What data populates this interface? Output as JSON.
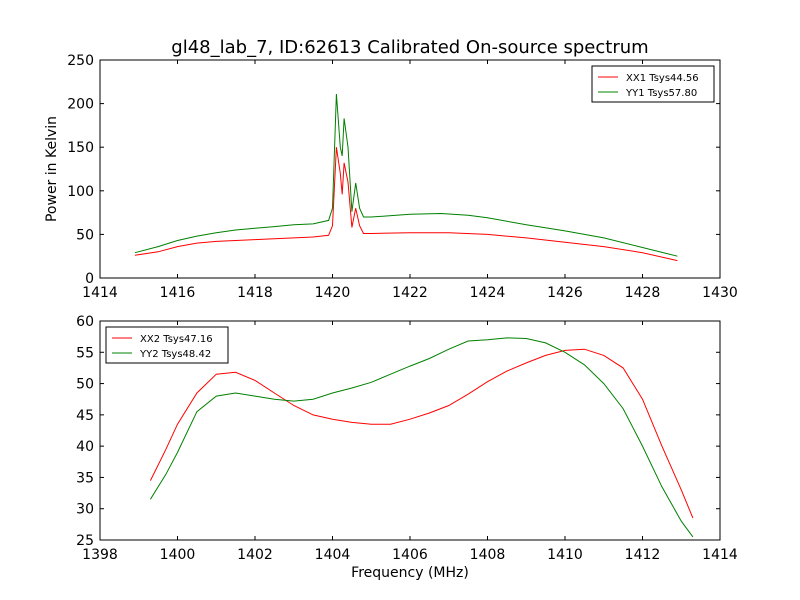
{
  "title": "gl48_lab_7, ID:62613 Calibrated On-source spectrum",
  "chart_data": [
    {
      "type": "line",
      "ylabel": "Power in Kelvin",
      "xlabel": "",
      "xlim": [
        1414,
        1430
      ],
      "ylim": [
        0,
        250
      ],
      "xticks": [
        1414,
        1416,
        1418,
        1420,
        1422,
        1424,
        1426,
        1428,
        1430
      ],
      "yticks": [
        0,
        50,
        100,
        150,
        200,
        250
      ],
      "legend": "top-right",
      "series": [
        {
          "name": "XX1 Tsys44.56",
          "color": "#ff0000",
          "x": [
            1414.9,
            1415.5,
            1416,
            1416.5,
            1417,
            1417.5,
            1418,
            1418.5,
            1419,
            1419.5,
            1419.9,
            1420.0,
            1420.1,
            1420.2,
            1420.25,
            1420.3,
            1420.4,
            1420.5,
            1420.6,
            1420.7,
            1420.8,
            1421,
            1422,
            1423,
            1424,
            1425,
            1426,
            1427,
            1428,
            1428.9
          ],
          "y": [
            26,
            30,
            36,
            40,
            42,
            43,
            44,
            45,
            46,
            47,
            49,
            60,
            150,
            120,
            96,
            132,
            110,
            58,
            80,
            60,
            51,
            51,
            52,
            52,
            50,
            46,
            41,
            36,
            29,
            20
          ]
        },
        {
          "name": "YY1 Tsys57.80",
          "color": "#008000",
          "x": [
            1414.9,
            1415.5,
            1416,
            1416.5,
            1417,
            1417.5,
            1418,
            1418.5,
            1419,
            1419.5,
            1419.9,
            1420.0,
            1420.1,
            1420.2,
            1420.25,
            1420.3,
            1420.4,
            1420.5,
            1420.6,
            1420.7,
            1420.8,
            1421,
            1422,
            1422.8,
            1423.5,
            1424,
            1425,
            1426,
            1427,
            1428,
            1428.9
          ],
          "y": [
            29,
            36,
            43,
            48,
            52,
            55,
            57,
            59,
            61,
            62,
            66,
            80,
            211,
            150,
            140,
            183,
            150,
            76,
            109,
            80,
            70,
            70,
            73,
            74,
            72,
            69,
            61,
            54,
            46,
            35,
            25
          ]
        }
      ]
    },
    {
      "type": "line",
      "xlabel": "Frequency (MHz)",
      "ylabel": "",
      "xlim": [
        1398,
        1414
      ],
      "ylim": [
        25,
        60
      ],
      "xticks": [
        1398,
        1400,
        1402,
        1404,
        1406,
        1408,
        1410,
        1412,
        1414
      ],
      "yticks": [
        25,
        30,
        35,
        40,
        45,
        50,
        55,
        60
      ],
      "legend": "top-left",
      "series": [
        {
          "name": "XX2 Tsys47.16",
          "color": "#ff0000",
          "x": [
            1399.3,
            1399.7,
            1400.0,
            1400.5,
            1401.0,
            1401.5,
            1402.0,
            1402.5,
            1403.0,
            1403.5,
            1404.0,
            1404.5,
            1405.0,
            1405.5,
            1406.0,
            1406.5,
            1407.0,
            1407.5,
            1408.0,
            1408.5,
            1409.0,
            1409.5,
            1410.0,
            1410.5,
            1411.0,
            1411.5,
            1412.0,
            1412.5,
            1413.0,
            1413.3
          ],
          "y": [
            34.5,
            39.5,
            43.5,
            48.5,
            51.5,
            51.8,
            50.5,
            48.5,
            46.5,
            45.0,
            44.3,
            43.8,
            43.5,
            43.5,
            44.3,
            45.3,
            46.5,
            48.3,
            50.3,
            52.0,
            53.3,
            54.5,
            55.3,
            55.5,
            54.5,
            52.5,
            47.5,
            40.0,
            33.0,
            28.5
          ]
        },
        {
          "name": "YY2 Tsys48.42",
          "color": "#008000",
          "x": [
            1399.3,
            1399.7,
            1400.0,
            1400.5,
            1401.0,
            1401.5,
            1402.0,
            1402.5,
            1403.0,
            1403.5,
            1404.0,
            1404.5,
            1405.0,
            1405.5,
            1406.0,
            1406.5,
            1407.0,
            1407.5,
            1408.0,
            1408.5,
            1409.0,
            1409.5,
            1410.0,
            1410.5,
            1411.0,
            1411.5,
            1412.0,
            1412.5,
            1413.0,
            1413.3
          ],
          "y": [
            31.5,
            35.5,
            39.0,
            45.5,
            48.0,
            48.5,
            48.0,
            47.5,
            47.2,
            47.5,
            48.5,
            49.3,
            50.2,
            51.5,
            52.8,
            54.0,
            55.5,
            56.8,
            57.0,
            57.3,
            57.2,
            56.5,
            55.0,
            53.0,
            50.0,
            46.0,
            40.0,
            33.5,
            28.0,
            25.5
          ]
        }
      ]
    }
  ]
}
